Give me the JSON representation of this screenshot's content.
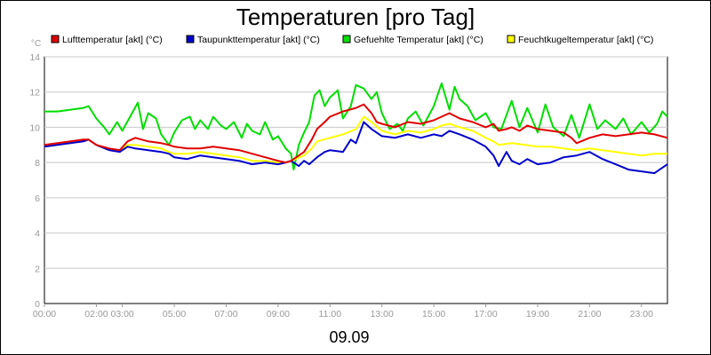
{
  "chart_data": {
    "type": "line",
    "title": "Temperaturen [pro Tag]",
    "y_unit": "°C",
    "xlabel": "09.09",
    "ylim": [
      0,
      14
    ],
    "y_ticks": [
      0,
      2,
      4,
      6,
      8,
      10,
      12,
      14
    ],
    "x_range_hours": [
      0,
      24
    ],
    "x_ticks": [
      {
        "label": "00:00",
        "h": 0
      },
      {
        "label": "02:00",
        "h": 2
      },
      {
        "label": "03:00",
        "h": 3
      },
      {
        "label": "05:00",
        "h": 5
      },
      {
        "label": "07:00",
        "h": 7
      },
      {
        "label": "09:00",
        "h": 9
      },
      {
        "label": "11:00",
        "h": 11
      },
      {
        "label": "13:00",
        "h": 13
      },
      {
        "label": "15:00",
        "h": 15
      },
      {
        "label": "17:00",
        "h": 17
      },
      {
        "label": "19:00",
        "h": 19
      },
      {
        "label": "21:00",
        "h": 21
      },
      {
        "label": "23:00",
        "h": 23
      }
    ],
    "grid": true,
    "legend_position": "top",
    "series": [
      {
        "name": "Lufttemperatur [akt] (°C)",
        "color": "#e00000",
        "points": [
          [
            0,
            9.0
          ],
          [
            0.5,
            9.1
          ],
          [
            1,
            9.2
          ],
          [
            1.5,
            9.3
          ],
          [
            1.7,
            9.3
          ],
          [
            2,
            9.0
          ],
          [
            2.5,
            8.8
          ],
          [
            2.9,
            8.7
          ],
          [
            3.2,
            9.2
          ],
          [
            3.5,
            9.4
          ],
          [
            4,
            9.2
          ],
          [
            4.5,
            9.1
          ],
          [
            4.8,
            9.0
          ],
          [
            5,
            8.9
          ],
          [
            5.5,
            8.8
          ],
          [
            6,
            8.8
          ],
          [
            6.5,
            8.9
          ],
          [
            7,
            8.8
          ],
          [
            7.5,
            8.7
          ],
          [
            8,
            8.5
          ],
          [
            8.5,
            8.3
          ],
          [
            9,
            8.1
          ],
          [
            9.3,
            8.0
          ],
          [
            9.5,
            8.1
          ],
          [
            10,
            8.6
          ],
          [
            10.3,
            9.3
          ],
          [
            10.5,
            9.9
          ],
          [
            10.8,
            10.3
          ],
          [
            11,
            10.6
          ],
          [
            11.5,
            10.9
          ],
          [
            12,
            11.1
          ],
          [
            12.3,
            11.3
          ],
          [
            12.6,
            10.8
          ],
          [
            12.8,
            10.3
          ],
          [
            13,
            10.2
          ],
          [
            13.5,
            10.0
          ],
          [
            14,
            10.3
          ],
          [
            14.5,
            10.2
          ],
          [
            15,
            10.4
          ],
          [
            15.3,
            10.6
          ],
          [
            15.6,
            10.8
          ],
          [
            16,
            10.5
          ],
          [
            16.5,
            10.3
          ],
          [
            17,
            10.0
          ],
          [
            17.3,
            10.2
          ],
          [
            17.5,
            9.8
          ],
          [
            17.8,
            9.9
          ],
          [
            18,
            10.0
          ],
          [
            18.3,
            9.8
          ],
          [
            18.6,
            10.1
          ],
          [
            19,
            9.9
          ],
          [
            19.5,
            9.8
          ],
          [
            20,
            9.7
          ],
          [
            20.3,
            9.4
          ],
          [
            20.5,
            9.1
          ],
          [
            21,
            9.4
          ],
          [
            21.5,
            9.6
          ],
          [
            22,
            9.5
          ],
          [
            22.5,
            9.6
          ],
          [
            23,
            9.7
          ],
          [
            23.5,
            9.6
          ],
          [
            24,
            9.4
          ]
        ]
      },
      {
        "name": "Taupunkttemperatur [akt] (°C)",
        "color": "#0000cc",
        "points": [
          [
            0,
            8.9
          ],
          [
            0.5,
            9.0
          ],
          [
            1,
            9.1
          ],
          [
            1.5,
            9.2
          ],
          [
            1.7,
            9.3
          ],
          [
            2,
            9.0
          ],
          [
            2.5,
            8.7
          ],
          [
            2.9,
            8.6
          ],
          [
            3.2,
            8.9
          ],
          [
            3.5,
            8.8
          ],
          [
            4,
            8.7
          ],
          [
            4.5,
            8.6
          ],
          [
            4.8,
            8.5
          ],
          [
            5,
            8.3
          ],
          [
            5.5,
            8.2
          ],
          [
            6,
            8.4
          ],
          [
            6.5,
            8.3
          ],
          [
            7,
            8.2
          ],
          [
            7.5,
            8.1
          ],
          [
            8,
            7.9
          ],
          [
            8.5,
            8.0
          ],
          [
            9,
            7.9
          ],
          [
            9.3,
            8.0
          ],
          [
            9.5,
            8.1
          ],
          [
            9.8,
            7.8
          ],
          [
            10,
            8.1
          ],
          [
            10.2,
            7.9
          ],
          [
            10.5,
            8.3
          ],
          [
            10.8,
            8.6
          ],
          [
            11,
            8.7
          ],
          [
            11.5,
            8.6
          ],
          [
            11.8,
            9.3
          ],
          [
            12,
            9.1
          ],
          [
            12.3,
            10.3
          ],
          [
            12.6,
            9.9
          ],
          [
            13,
            9.5
          ],
          [
            13.5,
            9.4
          ],
          [
            14,
            9.6
          ],
          [
            14.5,
            9.4
          ],
          [
            15,
            9.6
          ],
          [
            15.3,
            9.5
          ],
          [
            15.6,
            9.8
          ],
          [
            16,
            9.6
          ],
          [
            16.5,
            9.3
          ],
          [
            17,
            8.9
          ],
          [
            17.3,
            8.4
          ],
          [
            17.5,
            7.8
          ],
          [
            17.8,
            8.6
          ],
          [
            18,
            8.1
          ],
          [
            18.3,
            7.9
          ],
          [
            18.6,
            8.2
          ],
          [
            19,
            7.9
          ],
          [
            19.5,
            8.0
          ],
          [
            20,
            8.3
          ],
          [
            20.5,
            8.4
          ],
          [
            21,
            8.6
          ],
          [
            21.5,
            8.2
          ],
          [
            22,
            7.9
          ],
          [
            22.5,
            7.6
          ],
          [
            23,
            7.5
          ],
          [
            23.5,
            7.4
          ],
          [
            24,
            7.9
          ]
        ]
      },
      {
        "name": "Gefuehlte Temperatur [akt] (°C)",
        "color": "#00dd00",
        "points": [
          [
            0,
            10.9
          ],
          [
            0.5,
            10.9
          ],
          [
            1,
            11.0
          ],
          [
            1.5,
            11.1
          ],
          [
            1.7,
            11.2
          ],
          [
            2,
            10.5
          ],
          [
            2.3,
            10.0
          ],
          [
            2.5,
            9.6
          ],
          [
            2.8,
            10.3
          ],
          [
            3.0,
            9.8
          ],
          [
            3.3,
            10.6
          ],
          [
            3.6,
            11.4
          ],
          [
            3.8,
            9.9
          ],
          [
            4.0,
            10.8
          ],
          [
            4.3,
            10.5
          ],
          [
            4.5,
            9.6
          ],
          [
            4.8,
            9.0
          ],
          [
            5,
            9.7
          ],
          [
            5.3,
            10.4
          ],
          [
            5.6,
            10.6
          ],
          [
            5.8,
            9.9
          ],
          [
            6,
            10.4
          ],
          [
            6.3,
            9.9
          ],
          [
            6.5,
            10.6
          ],
          [
            6.8,
            10.1
          ],
          [
            7,
            9.9
          ],
          [
            7.3,
            10.3
          ],
          [
            7.6,
            9.4
          ],
          [
            7.8,
            10.2
          ],
          [
            8,
            9.8
          ],
          [
            8.3,
            9.6
          ],
          [
            8.5,
            10.3
          ],
          [
            8.8,
            9.3
          ],
          [
            9,
            9.5
          ],
          [
            9.3,
            8.8
          ],
          [
            9.5,
            8.5
          ],
          [
            9.6,
            7.6
          ],
          [
            9.8,
            9.0
          ],
          [
            10,
            9.7
          ],
          [
            10.2,
            10.3
          ],
          [
            10.4,
            11.8
          ],
          [
            10.6,
            12.1
          ],
          [
            10.8,
            11.2
          ],
          [
            11,
            11.7
          ],
          [
            11.3,
            12.1
          ],
          [
            11.5,
            10.5
          ],
          [
            11.8,
            11.2
          ],
          [
            12,
            12.4
          ],
          [
            12.3,
            12.2
          ],
          [
            12.6,
            11.6
          ],
          [
            12.8,
            12.0
          ],
          [
            13,
            10.8
          ],
          [
            13.3,
            9.9
          ],
          [
            13.6,
            10.2
          ],
          [
            13.8,
            9.8
          ],
          [
            14,
            10.5
          ],
          [
            14.3,
            10.9
          ],
          [
            14.6,
            10.1
          ],
          [
            15,
            11.2
          ],
          [
            15.3,
            12.5
          ],
          [
            15.6,
            11.0
          ],
          [
            15.8,
            12.3
          ],
          [
            16,
            11.6
          ],
          [
            16.3,
            11.2
          ],
          [
            16.6,
            10.4
          ],
          [
            17,
            10.8
          ],
          [
            17.3,
            10.0
          ],
          [
            17.6,
            9.9
          ],
          [
            18,
            11.5
          ],
          [
            18.3,
            10.0
          ],
          [
            18.6,
            11.1
          ],
          [
            19,
            9.7
          ],
          [
            19.3,
            11.3
          ],
          [
            19.6,
            10.0
          ],
          [
            20,
            9.5
          ],
          [
            20.3,
            10.7
          ],
          [
            20.6,
            9.4
          ],
          [
            21,
            11.3
          ],
          [
            21.3,
            9.9
          ],
          [
            21.6,
            10.4
          ],
          [
            22,
            9.9
          ],
          [
            22.3,
            10.5
          ],
          [
            22.6,
            9.6
          ],
          [
            23,
            10.3
          ],
          [
            23.3,
            9.7
          ],
          [
            23.6,
            10.2
          ],
          [
            23.8,
            10.9
          ],
          [
            24,
            10.6
          ]
        ]
      },
      {
        "name": "Feuchtkugeltemperatur [akt] (°C)",
        "color": "#ffff00",
        "points": [
          [
            0,
            8.9
          ],
          [
            0.5,
            9.0
          ],
          [
            1,
            9.1
          ],
          [
            1.5,
            9.2
          ],
          [
            1.7,
            9.3
          ],
          [
            2,
            9.0
          ],
          [
            2.5,
            8.7
          ],
          [
            2.9,
            8.7
          ],
          [
            3.2,
            9.0
          ],
          [
            3.5,
            9.0
          ],
          [
            4,
            8.9
          ],
          [
            4.5,
            8.8
          ],
          [
            4.8,
            8.6
          ],
          [
            5,
            8.5
          ],
          [
            5.5,
            8.5
          ],
          [
            6,
            8.6
          ],
          [
            6.5,
            8.5
          ],
          [
            7,
            8.4
          ],
          [
            7.5,
            8.3
          ],
          [
            8,
            8.1
          ],
          [
            8.5,
            8.1
          ],
          [
            9,
            8.0
          ],
          [
            9.3,
            8.0
          ],
          [
            9.5,
            8.1
          ],
          [
            10,
            8.4
          ],
          [
            10.3,
            8.8
          ],
          [
            10.5,
            9.2
          ],
          [
            11,
            9.4
          ],
          [
            11.5,
            9.6
          ],
          [
            12,
            9.9
          ],
          [
            12.3,
            10.6
          ],
          [
            12.6,
            10.3
          ],
          [
            13,
            9.8
          ],
          [
            13.5,
            9.6
          ],
          [
            14,
            9.8
          ],
          [
            14.5,
            9.7
          ],
          [
            15,
            9.9
          ],
          [
            15.3,
            10.1
          ],
          [
            15.6,
            10.2
          ],
          [
            16,
            10.0
          ],
          [
            16.5,
            9.8
          ],
          [
            17,
            9.4
          ],
          [
            17.3,
            9.2
          ],
          [
            17.5,
            9.0
          ],
          [
            18,
            9.1
          ],
          [
            18.5,
            9.0
          ],
          [
            19,
            8.9
          ],
          [
            19.5,
            8.9
          ],
          [
            20,
            8.8
          ],
          [
            20.5,
            8.7
          ],
          [
            21,
            8.8
          ],
          [
            21.5,
            8.7
          ],
          [
            22,
            8.6
          ],
          [
            22.5,
            8.5
          ],
          [
            23,
            8.4
          ],
          [
            23.5,
            8.5
          ],
          [
            24,
            8.5
          ]
        ]
      }
    ]
  }
}
